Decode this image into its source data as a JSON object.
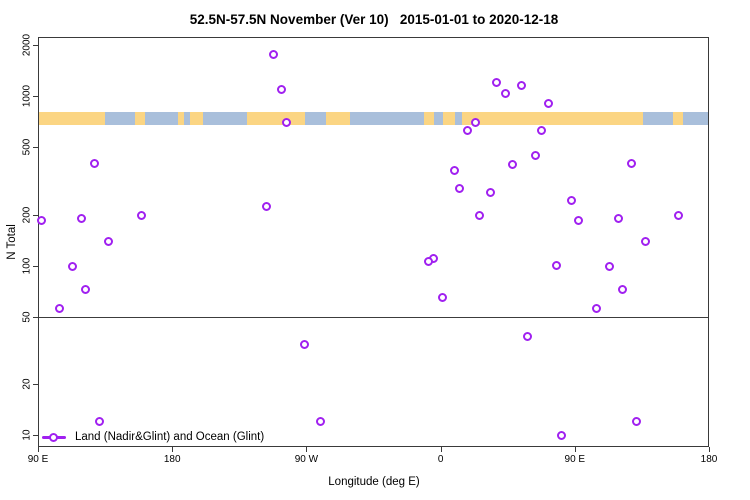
{
  "chart_data": {
    "type": "scatter",
    "title": "52.5N-57.5N November (Ver 10)   2015-01-01 to 2020-12-18",
    "xlabel": "Longitude (deg E)",
    "ylabel": "N Total",
    "y_scale": "log",
    "ylim": [
      8.5,
      2230
    ],
    "x_axis_note": "x measured in degrees east of the left edge (left edge = 90E); axis wraps: 90E,180,90W,0,90E,180 over 450 deg",
    "x_span_deg": 450,
    "x_ticks": [
      {
        "pos": 0,
        "label": "90 E"
      },
      {
        "pos": 90,
        "label": "180"
      },
      {
        "pos": 180,
        "label": "90 W"
      },
      {
        "pos": 270,
        "label": "0"
      },
      {
        "pos": 360,
        "label": "90 E"
      },
      {
        "pos": 450,
        "label": "180"
      }
    ],
    "y_ticks": [
      {
        "value": 2000,
        "label": "2000"
      },
      {
        "value": 1000,
        "label": "1000"
      },
      {
        "value": 500,
        "label": "500"
      },
      {
        "value": 200,
        "label": "200"
      },
      {
        "value": 100,
        "label": "100"
      },
      {
        "value": 50,
        "label": "50"
      },
      {
        "value": 20,
        "label": "20"
      },
      {
        "value": 10,
        "label": "10"
      }
    ],
    "reference_line_y": 50,
    "legend": {
      "label": "Land (Nadir&Glint) and Ocean (Glint)"
    },
    "colors": {
      "marker": "#A020F0",
      "land": "#FBD583",
      "ocean": "#A9BFDB",
      "box": "#3a3a3a",
      "refline": "#3c3c3c"
    },
    "map_band": {
      "value_top": 805,
      "value_bottom": 675,
      "segments": [
        {
          "from": 0,
          "to": 44.9,
          "type": "land"
        },
        {
          "from": 44.9,
          "to": 65.1,
          "type": "ocean"
        },
        {
          "from": 65.1,
          "to": 71.8,
          "type": "land"
        },
        {
          "from": 71.8,
          "to": 93.9,
          "type": "ocean"
        },
        {
          "from": 93.9,
          "to": 97.9,
          "type": "land"
        },
        {
          "from": 97.9,
          "to": 101.9,
          "type": "ocean"
        },
        {
          "from": 101.9,
          "to": 110.7,
          "type": "land"
        },
        {
          "from": 110.7,
          "to": 140.2,
          "type": "ocean"
        },
        {
          "from": 140.2,
          "to": 179.1,
          "type": "land"
        },
        {
          "from": 179.1,
          "to": 193.2,
          "type": "ocean"
        },
        {
          "from": 193.2,
          "to": 209.3,
          "type": "land"
        },
        {
          "from": 209.3,
          "to": 258.9,
          "type": "ocean"
        },
        {
          "from": 258.9,
          "to": 265.6,
          "type": "land"
        },
        {
          "from": 265.6,
          "to": 271.6,
          "type": "ocean"
        },
        {
          "from": 271.6,
          "to": 279.7,
          "type": "land"
        },
        {
          "from": 279.7,
          "to": 284.4,
          "type": "ocean"
        },
        {
          "from": 284.4,
          "to": 405.8,
          "type": "land"
        },
        {
          "from": 405.8,
          "to": 425.9,
          "type": "ocean"
        },
        {
          "from": 425.9,
          "to": 432.6,
          "type": "land"
        },
        {
          "from": 432.6,
          "to": 450,
          "type": "ocean"
        }
      ]
    },
    "points": [
      {
        "x": 2.5,
        "n": 185
      },
      {
        "x": 29,
        "n": 190
      },
      {
        "x": 38,
        "n": 400
      },
      {
        "x": 69.5,
        "n": 196
      },
      {
        "x": 47.5,
        "n": 138
      },
      {
        "x": 23,
        "n": 99
      },
      {
        "x": 32,
        "n": 72
      },
      {
        "x": 14.5,
        "n": 56
      },
      {
        "x": 41.5,
        "n": 12
      },
      {
        "x": 158,
        "n": 1760
      },
      {
        "x": 163,
        "n": 1100
      },
      {
        "x": 166.5,
        "n": 700
      },
      {
        "x": 153,
        "n": 222
      },
      {
        "x": 179,
        "n": 34
      },
      {
        "x": 189.5,
        "n": 12
      },
      {
        "x": 307.8,
        "n": 1210
      },
      {
        "x": 324,
        "n": 1160
      },
      {
        "x": 313.5,
        "n": 1040
      },
      {
        "x": 342.5,
        "n": 905
      },
      {
        "x": 293.3,
        "n": 700
      },
      {
        "x": 288,
        "n": 630
      },
      {
        "x": 338,
        "n": 630
      },
      {
        "x": 333.5,
        "n": 443
      },
      {
        "x": 318,
        "n": 392
      },
      {
        "x": 279,
        "n": 365
      },
      {
        "x": 283,
        "n": 286
      },
      {
        "x": 303.5,
        "n": 271
      },
      {
        "x": 296,
        "n": 198
      },
      {
        "x": 265.5,
        "n": 110
      },
      {
        "x": 262,
        "n": 105
      },
      {
        "x": 271,
        "n": 65
      },
      {
        "x": 328.5,
        "n": 38
      },
      {
        "x": 357.5,
        "n": 241
      },
      {
        "x": 348,
        "n": 100
      },
      {
        "x": 351,
        "n": 10
      },
      {
        "x": 398,
        "n": 400
      },
      {
        "x": 362.5,
        "n": 185
      },
      {
        "x": 389,
        "n": 190
      },
      {
        "x": 429.5,
        "n": 196
      },
      {
        "x": 407.5,
        "n": 138
      },
      {
        "x": 383,
        "n": 99
      },
      {
        "x": 392,
        "n": 72
      },
      {
        "x": 374.5,
        "n": 56
      },
      {
        "x": 401.5,
        "n": 12
      }
    ]
  }
}
